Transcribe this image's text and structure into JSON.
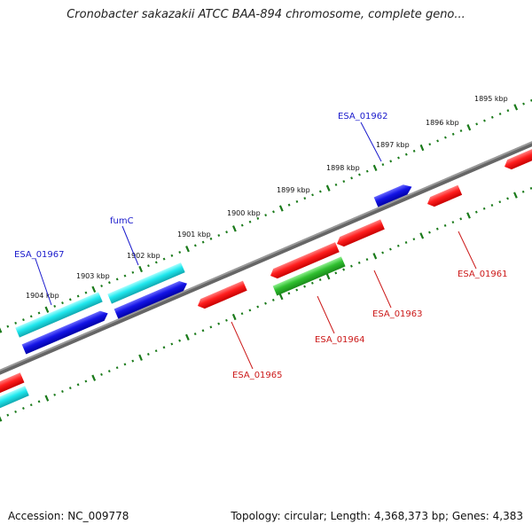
{
  "title": "Cronobacter sakazakii ATCC BAA-894 chromosome, complete geno...",
  "footer": {
    "accession": "Accession: NC_009778",
    "summary": "Topology: circular; Length: 4,368,373 bp; Genes: 4,383"
  },
  "colors": {
    "backbone": "#808080",
    "ticks": "#1a7a1a",
    "forward_label": "#1a1acc",
    "reverse_label": "#cc1a1a",
    "cds_red": "#ff1e1e",
    "cds_blue": "#1414e6",
    "cds_cyan": "#20e8ee",
    "cds_green": "#30c030"
  },
  "kbp_labels": [
    "1895 kbp",
    "1896 kbp",
    "1897 kbp",
    "1898 kbp",
    "1899 kbp",
    "1900 kbp",
    "1901 kbp",
    "1902 kbp",
    "1903 kbp",
    "1904 kbp"
  ],
  "gene_labels": [
    {
      "name": "ESA_01962",
      "strand": "forward"
    },
    {
      "name": "fumC",
      "strand": "forward"
    },
    {
      "name": "ESA_01967",
      "strand": "forward"
    },
    {
      "name": "ESA_01961",
      "strand": "reverse"
    },
    {
      "name": "ESA_01963",
      "strand": "reverse"
    },
    {
      "name": "ESA_01964",
      "strand": "reverse"
    },
    {
      "name": "ESA_01965",
      "strand": "reverse"
    }
  ]
}
